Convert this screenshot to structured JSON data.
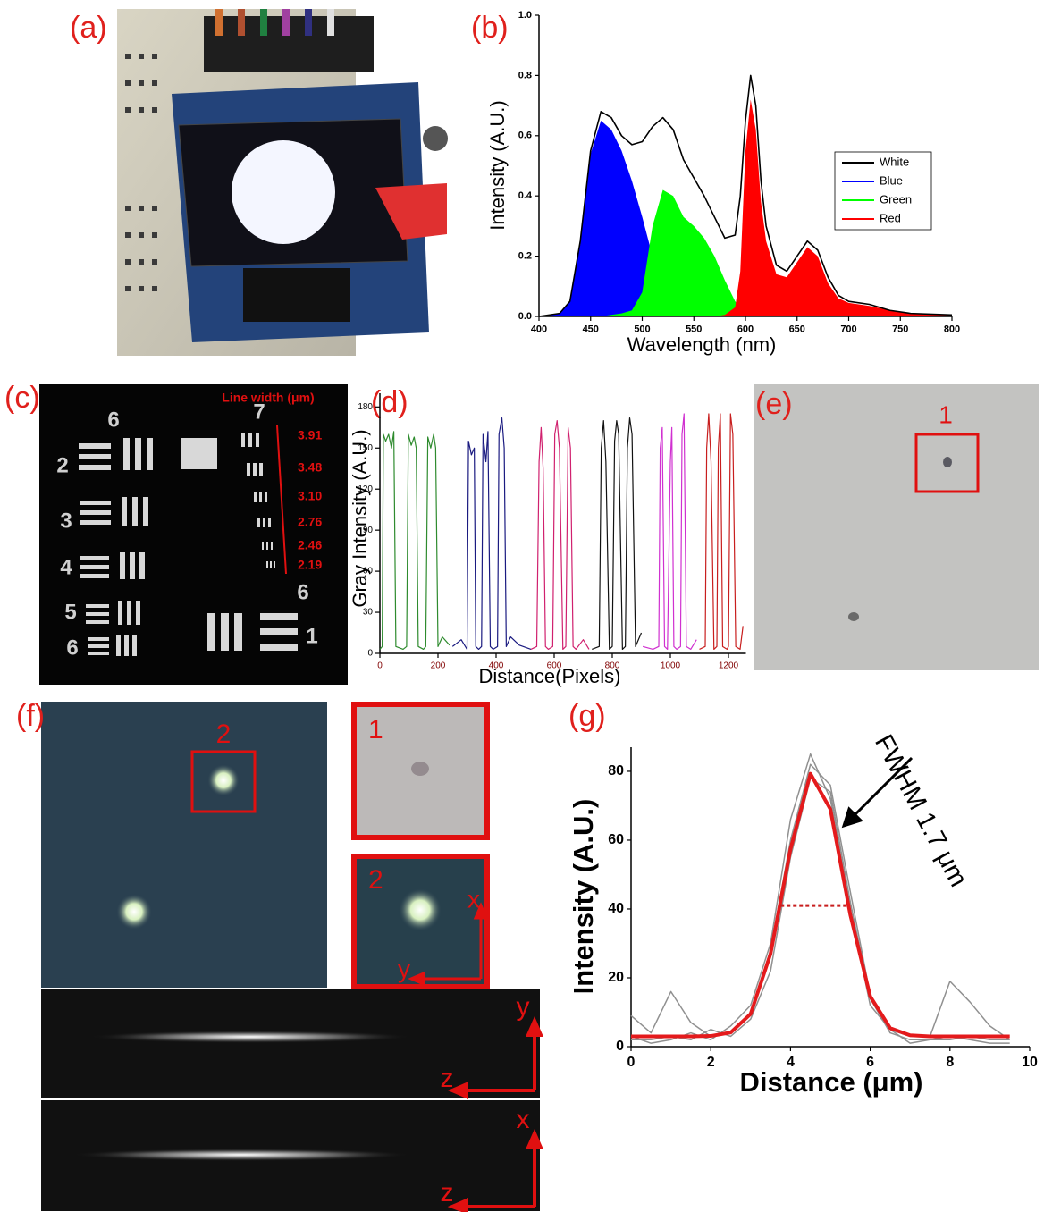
{
  "panel_labels": [
    "(a)",
    "(b)",
    "(c)",
    "(d)",
    "(e)",
    "(f)",
    "(g)"
  ],
  "photos": {
    "c": {
      "group_labels": [
        "6",
        "7",
        "2",
        "3",
        "4",
        "5",
        "6",
        "6",
        "1"
      ],
      "line_width_title": "Line width (μm)",
      "line_widths": [
        "3.91",
        "3.48",
        "3.10",
        "2.76",
        "2.46",
        "2.19"
      ]
    },
    "e": {
      "box_label": "1"
    },
    "f": {
      "box_label": "2",
      "inset_labels": [
        "1",
        "2"
      ],
      "inset_axes": [
        "x",
        "y"
      ],
      "strip_axes": [
        "y",
        "z",
        "x",
        "z"
      ]
    }
  },
  "chart_data": [
    {
      "type": "area",
      "x_label": "Wavelength (nm)",
      "y_label": "Intensity (A.U.)",
      "x": [
        400,
        420,
        430,
        440,
        450,
        460,
        470,
        480,
        490,
        500,
        510,
        520,
        530,
        540,
        550,
        560,
        570,
        580,
        590,
        595,
        600,
        605,
        610,
        615,
        620,
        630,
        640,
        650,
        660,
        670,
        680,
        690,
        700,
        720,
        740,
        760,
        800
      ],
      "series": [
        {
          "name": "White",
          "color": "#000000",
          "fill": false,
          "values": [
            0,
            0.01,
            0.05,
            0.25,
            0.55,
            0.68,
            0.66,
            0.6,
            0.57,
            0.58,
            0.63,
            0.66,
            0.62,
            0.52,
            0.46,
            0.4,
            0.33,
            0.26,
            0.27,
            0.4,
            0.65,
            0.8,
            0.7,
            0.45,
            0.3,
            0.17,
            0.15,
            0.2,
            0.25,
            0.22,
            0.13,
            0.07,
            0.05,
            0.04,
            0.02,
            0.01,
            0.005
          ]
        },
        {
          "name": "Blue",
          "color": "#0000ff",
          "fill": true,
          "values": [
            0,
            0.01,
            0.05,
            0.24,
            0.54,
            0.65,
            0.62,
            0.55,
            0.45,
            0.33,
            0.2,
            0.1,
            0.05,
            0.03,
            0.02,
            0.01,
            0.01,
            0.005,
            0,
            0,
            0,
            0,
            0,
            0,
            0,
            0,
            0,
            0,
            0,
            0,
            0,
            0,
            0,
            0,
            0,
            0,
            0
          ]
        },
        {
          "name": "Green",
          "color": "#00ff00",
          "fill": true,
          "values": [
            0,
            0,
            0,
            0,
            0,
            0,
            0.005,
            0.01,
            0.02,
            0.08,
            0.3,
            0.42,
            0.4,
            0.33,
            0.3,
            0.26,
            0.2,
            0.12,
            0.05,
            0.03,
            0.02,
            0.01,
            0.01,
            0.005,
            0,
            0,
            0,
            0,
            0,
            0,
            0,
            0,
            0,
            0,
            0,
            0,
            0
          ]
        },
        {
          "name": "Red",
          "color": "#ff0000",
          "fill": true,
          "values": [
            0,
            0,
            0,
            0,
            0,
            0,
            0,
            0,
            0,
            0,
            0,
            0,
            0,
            0,
            0,
            0,
            0,
            0.005,
            0.03,
            0.15,
            0.55,
            0.72,
            0.62,
            0.38,
            0.25,
            0.14,
            0.13,
            0.18,
            0.23,
            0.2,
            0.11,
            0.06,
            0.045,
            0.035,
            0.02,
            0.01,
            0.005
          ]
        }
      ],
      "xlim": [
        400,
        800
      ],
      "ylim": [
        0,
        1.0
      ],
      "xticks": [
        400,
        450,
        500,
        550,
        600,
        650,
        700,
        750,
        800
      ],
      "yticks": [
        {
          "value": 0,
          "label": "0.0"
        },
        0.2,
        0.4,
        0.6,
        0.8,
        {
          "value": 1.0,
          "label": "1.0"
        }
      ],
      "legend": "right"
    },
    {
      "type": "line",
      "x_label": "Distance(Pixels)",
      "y_label": "Gray Intensity (A.U.)",
      "series": [
        {
          "color": "#2e8b2e",
          "x": [
            0,
            8,
            12,
            20,
            30,
            40,
            48,
            55,
            80,
            92,
            98,
            108,
            118,
            125,
            132,
            150,
            158,
            165,
            175,
            185,
            192,
            200,
            215,
            240
          ],
          "values": [
            3,
            5,
            160,
            155,
            160,
            150,
            162,
            5,
            3,
            5,
            160,
            152,
            158,
            150,
            5,
            3,
            5,
            158,
            150,
            160,
            150,
            5,
            12,
            6
          ]
        },
        {
          "color": "#1a1a80",
          "x": [
            250,
            280,
            300,
            305,
            315,
            325,
            330,
            340,
            350,
            355,
            365,
            372,
            380,
            390,
            405,
            410,
            420,
            428,
            435,
            450,
            480,
            520
          ],
          "values": [
            5,
            10,
            3,
            155,
            145,
            150,
            5,
            3,
            5,
            160,
            140,
            162,
            5,
            3,
            5,
            160,
            172,
            150,
            5,
            12,
            6,
            3
          ]
        },
        {
          "color": "#d0206e",
          "x": [
            520,
            540,
            548,
            555,
            562,
            570,
            580,
            595,
            602,
            610,
            618,
            630,
            640,
            648,
            656,
            665,
            675,
            700,
            720
          ],
          "values": [
            3,
            5,
            140,
            165,
            135,
            5,
            3,
            5,
            160,
            170,
            150,
            3,
            5,
            165,
            150,
            5,
            3,
            10,
            3
          ]
        },
        {
          "color": "#111111",
          "x": [
            730,
            755,
            762,
            770,
            778,
            790,
            800,
            808,
            815,
            822,
            835,
            845,
            852,
            860,
            868,
            880,
            900
          ],
          "values": [
            3,
            5,
            150,
            170,
            140,
            3,
            5,
            155,
            170,
            160,
            3,
            5,
            150,
            172,
            160,
            5,
            15
          ]
        },
        {
          "color": "#d030d0",
          "x": [
            905,
            940,
            960,
            965,
            972,
            980,
            990,
            1000,
            1005,
            1012,
            1022,
            1035,
            1040,
            1047,
            1055,
            1070,
            1090
          ],
          "values": [
            5,
            3,
            5,
            150,
            165,
            5,
            3,
            140,
            165,
            5,
            3,
            5,
            160,
            175,
            5,
            3,
            10
          ]
        },
        {
          "color": "#c81e1e",
          "x": [
            1100,
            1120,
            1125,
            1132,
            1140,
            1150,
            1160,
            1165,
            1172,
            1180,
            1195,
            1200,
            1207,
            1215,
            1225,
            1240,
            1250
          ],
          "values": [
            3,
            5,
            150,
            175,
            140,
            3,
            5,
            150,
            175,
            5,
            3,
            5,
            175,
            160,
            5,
            3,
            20
          ]
        }
      ],
      "xlim": [
        0,
        1260
      ],
      "ylim": [
        0,
        190
      ],
      "xticks": [
        0,
        200,
        400,
        600,
        800,
        1000,
        1200
      ],
      "yticks": [
        0,
        30,
        60,
        90,
        120,
        150,
        180
      ]
    },
    {
      "type": "line",
      "x_label": "Distance (μm)",
      "y_label": "Intensity (A.U.)",
      "annotation": "FWHM 1.7 μm",
      "x": [
        0,
        0.5,
        1,
        1.5,
        2,
        2.5,
        3,
        3.5,
        4,
        4.5,
        5,
        5.5,
        6,
        6.5,
        7,
        7.5,
        8,
        8.5,
        9,
        9.5
      ],
      "series": [
        {
          "color": "#909090",
          "values": [
            9,
            4,
            16,
            7,
            3,
            4,
            10,
            28,
            60,
            82,
            76,
            45,
            15,
            5,
            3,
            3,
            19,
            13,
            6,
            2
          ]
        },
        {
          "color": "#909090",
          "values": [
            2,
            2,
            3,
            2,
            5,
            3,
            8,
            22,
            55,
            78,
            74,
            42,
            14,
            4,
            2,
            2,
            2,
            3,
            2,
            2
          ]
        },
        {
          "color": "#909090",
          "values": [
            3,
            1,
            2,
            4,
            2,
            6,
            12,
            30,
            66,
            85,
            72,
            40,
            12,
            5,
            1,
            2,
            3,
            2,
            1,
            1
          ]
        },
        {
          "color": "#e41a1c",
          "fit": true,
          "values": [
            3,
            3,
            3,
            3,
            3.1,
            4.1,
            9.5,
            27,
            57.4,
            79.3,
            69,
            38.3,
            14.6,
            5.4,
            3.3,
            3,
            3,
            3,
            3,
            3
          ]
        }
      ],
      "fwhm_segment": {
        "x": [
          3.75,
          5.45
        ],
        "y": 41
      },
      "xlim": [
        0,
        10
      ],
      "ylim": [
        0,
        87
      ],
      "xticks": [
        0,
        2,
        4,
        6,
        8,
        10
      ],
      "yticks": [
        0,
        20,
        40,
        60,
        80
      ]
    }
  ]
}
